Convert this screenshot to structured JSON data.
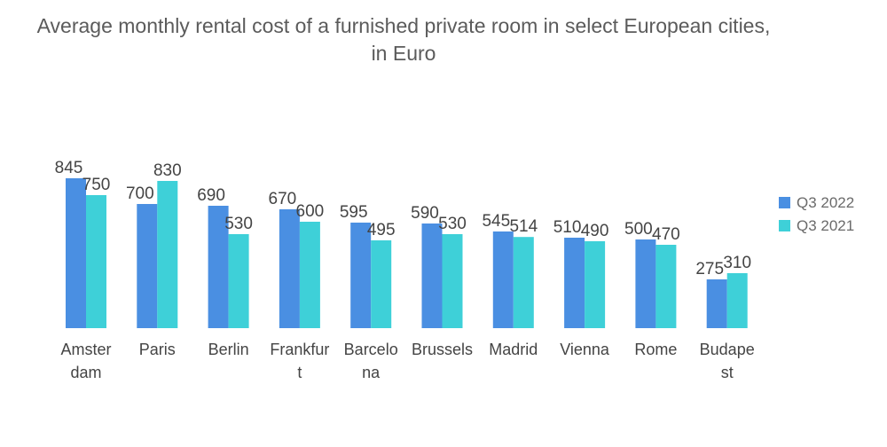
{
  "chart_data": {
    "type": "bar",
    "title": "Average monthly rental cost of a furnished private room in select European cities, in Euro",
    "xlabel": "",
    "ylabel": "",
    "ylim": [
      0,
      900
    ],
    "grid": false,
    "legend_position": "right",
    "categories": [
      "Amsterdam",
      "Paris",
      "Berlin",
      "Frankfurt",
      "Barcelona",
      "Brussels",
      "Madrid",
      "Vienna",
      "Rome",
      "Budapest"
    ],
    "category_display_lines": [
      [
        "Amster",
        "dam"
      ],
      [
        "Paris"
      ],
      [
        "Berlin"
      ],
      [
        "Frankfur",
        "t"
      ],
      [
        "Barcelo",
        "na"
      ],
      [
        "Brussels"
      ],
      [
        "Madrid"
      ],
      [
        "Vienna"
      ],
      [
        "Rome"
      ],
      [
        "Budape",
        "st"
      ]
    ],
    "series": [
      {
        "name": "Q3 2022",
        "color": "#4a8fe2",
        "values": [
          845,
          700,
          690,
          670,
          595,
          590,
          545,
          510,
          500,
          275
        ]
      },
      {
        "name": "Q3 2021",
        "color": "#3ed0d8",
        "values": [
          750,
          830,
          530,
          600,
          495,
          530,
          514,
          490,
          470,
          310
        ]
      }
    ]
  }
}
